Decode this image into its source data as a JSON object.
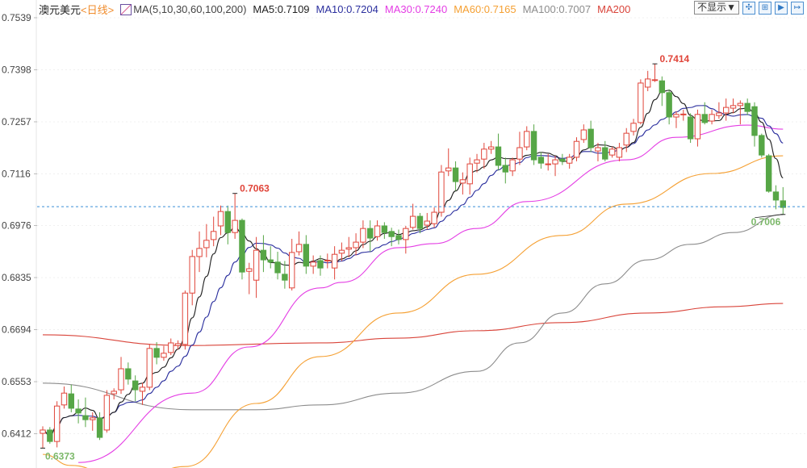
{
  "legend": {
    "instrument": "澳元美元",
    "period": "<日线>",
    "ma_label": "MA(5,10,30,60,100,200)",
    "ma5": "MA5:0.7109",
    "ma10": "MA10:0.7204",
    "ma30": "MA30:0.7240",
    "ma60": "MA60:0.7165",
    "ma100": "MA100:0.7007",
    "ma200": "MA200"
  },
  "controls": {
    "display_select": "不显示▼",
    "icons": [
      "crosshair-icon",
      "zoom-in-icon",
      "play-icon",
      "export-icon"
    ],
    "icon_glyphs": [
      "✣",
      "⊞",
      "▶",
      "↦"
    ]
  },
  "colors": {
    "up": "#e0453a",
    "down": "#56a646",
    "ma5": "#222222",
    "ma10": "#2b2f9e",
    "ma30": "#e43de4",
    "ma60": "#f5a033",
    "ma100": "#8c8c8c",
    "ma200": "#d9443a",
    "last_price_line": "#3a8fd8"
  },
  "chart_data": {
    "type": "candlestick",
    "ylim": [
      0.6335,
      0.7587
    ],
    "yticks": [
      "0.7539",
      "0.7398",
      "0.7257",
      "0.7116",
      "0.6976",
      "0.6835",
      "0.6694",
      "0.6553",
      "0.6412"
    ],
    "grid": true,
    "ohlc": [
      [
        0.6413,
        0.6432,
        0.6373,
        0.6422
      ],
      [
        0.6422,
        0.643,
        0.6385,
        0.6391
      ],
      [
        0.6391,
        0.65,
        0.6375,
        0.6487
      ],
      [
        0.649,
        0.654,
        0.648,
        0.6522
      ],
      [
        0.652,
        0.6545,
        0.647,
        0.6481
      ],
      [
        0.6479,
        0.6505,
        0.644,
        0.6468
      ],
      [
        0.6461,
        0.651,
        0.643,
        0.645
      ],
      [
        0.645,
        0.647,
        0.642,
        0.6455
      ],
      [
        0.6455,
        0.647,
        0.6395,
        0.6402
      ],
      [
        0.6422,
        0.653,
        0.6415,
        0.6516
      ],
      [
        0.652,
        0.6535,
        0.6505,
        0.6527
      ],
      [
        0.6531,
        0.662,
        0.652,
        0.6588
      ],
      [
        0.6588,
        0.6605,
        0.6545,
        0.656
      ],
      [
        0.6555,
        0.657,
        0.65,
        0.6531
      ],
      [
        0.6527,
        0.655,
        0.649,
        0.6538
      ],
      [
        0.6538,
        0.6655,
        0.653,
        0.6643
      ],
      [
        0.6643,
        0.666,
        0.66,
        0.6619
      ],
      [
        0.6619,
        0.665,
        0.661,
        0.663
      ],
      [
        0.6632,
        0.667,
        0.6625,
        0.6658
      ],
      [
        0.6651,
        0.6665,
        0.664,
        0.6656
      ],
      [
        0.6654,
        0.68,
        0.664,
        0.6793
      ],
      [
        0.6793,
        0.691,
        0.676,
        0.6892
      ],
      [
        0.6892,
        0.696,
        0.685,
        0.6914
      ],
      [
        0.6916,
        0.698,
        0.689,
        0.6936
      ],
      [
        0.6938,
        0.7,
        0.692,
        0.696
      ],
      [
        0.6975,
        0.703,
        0.695,
        0.7014
      ],
      [
        0.7014,
        0.703,
        0.6925,
        0.6957
      ],
      [
        0.6957,
        0.7063,
        0.694,
        0.699
      ],
      [
        0.699,
        0.6995,
        0.683,
        0.685
      ],
      [
        0.6852,
        0.6875,
        0.679,
        0.6859
      ],
      [
        0.6828,
        0.6945,
        0.678,
        0.6909
      ],
      [
        0.6909,
        0.695,
        0.685,
        0.6883
      ],
      [
        0.6883,
        0.692,
        0.686,
        0.6877
      ],
      [
        0.6877,
        0.6905,
        0.683,
        0.6848
      ],
      [
        0.6844,
        0.688,
        0.6805,
        0.6828
      ],
      [
        0.6807,
        0.694,
        0.68,
        0.6903
      ],
      [
        0.6905,
        0.696,
        0.6895,
        0.6925
      ],
      [
        0.6925,
        0.695,
        0.6845,
        0.6866
      ],
      [
        0.6866,
        0.6895,
        0.6845,
        0.6877
      ],
      [
        0.6881,
        0.6895,
        0.684,
        0.6861
      ],
      [
        0.6881,
        0.69,
        0.686,
        0.6882
      ],
      [
        0.6861,
        0.692,
        0.683,
        0.6898
      ],
      [
        0.6901,
        0.693,
        0.688,
        0.6909
      ],
      [
        0.6912,
        0.6945,
        0.689,
        0.6916
      ],
      [
        0.6916,
        0.6955,
        0.6895,
        0.6931
      ],
      [
        0.6931,
        0.699,
        0.6915,
        0.6968
      ],
      [
        0.6968,
        0.699,
        0.6905,
        0.6942
      ],
      [
        0.6946,
        0.699,
        0.6935,
        0.6975
      ],
      [
        0.6975,
        0.6985,
        0.694,
        0.6957
      ],
      [
        0.696,
        0.697,
        0.692,
        0.6946
      ],
      [
        0.6949,
        0.6965,
        0.6925,
        0.6938
      ],
      [
        0.6938,
        0.6975,
        0.69,
        0.6968
      ],
      [
        0.6971,
        0.7035,
        0.6965,
        0.7001
      ],
      [
        0.7001,
        0.701,
        0.6955,
        0.6968
      ],
      [
        0.6977,
        0.701,
        0.6965,
        0.6988
      ],
      [
        0.6981,
        0.7025,
        0.697,
        0.7012
      ],
      [
        0.7012,
        0.714,
        0.7,
        0.7121
      ],
      [
        0.7124,
        0.7185,
        0.711,
        0.7132
      ],
      [
        0.7132,
        0.715,
        0.707,
        0.7095
      ],
      [
        0.7091,
        0.712,
        0.706,
        0.71
      ],
      [
        0.7089,
        0.716,
        0.706,
        0.7143
      ],
      [
        0.7145,
        0.717,
        0.712,
        0.7154
      ],
      [
        0.7156,
        0.72,
        0.713,
        0.7183
      ],
      [
        0.7183,
        0.7205,
        0.717,
        0.7189
      ],
      [
        0.7189,
        0.7225,
        0.7125,
        0.7139
      ],
      [
        0.7139,
        0.716,
        0.709,
        0.7121
      ],
      [
        0.7124,
        0.716,
        0.711,
        0.7154
      ],
      [
        0.7156,
        0.723,
        0.714,
        0.7187
      ],
      [
        0.7189,
        0.7245,
        0.718,
        0.7231
      ],
      [
        0.7231,
        0.725,
        0.714,
        0.7154
      ],
      [
        0.7161,
        0.7175,
        0.713,
        0.7145
      ],
      [
        0.7143,
        0.717,
        0.7125,
        0.7143
      ],
      [
        0.7143,
        0.7165,
        0.711,
        0.7154
      ],
      [
        0.7156,
        0.717,
        0.714,
        0.715
      ],
      [
        0.7145,
        0.717,
        0.713,
        0.7161
      ],
      [
        0.7161,
        0.7215,
        0.715,
        0.7204
      ],
      [
        0.7209,
        0.725,
        0.72,
        0.7235
      ],
      [
        0.7237,
        0.726,
        0.7175,
        0.7187
      ],
      [
        0.7178,
        0.72,
        0.715,
        0.7187
      ],
      [
        0.7187,
        0.7205,
        0.715,
        0.7156
      ],
      [
        0.7167,
        0.719,
        0.716,
        0.7183
      ],
      [
        0.7161,
        0.72,
        0.715,
        0.7187
      ],
      [
        0.7194,
        0.724,
        0.7175,
        0.7226
      ],
      [
        0.7231,
        0.7265,
        0.722,
        0.7253
      ],
      [
        0.7255,
        0.7372,
        0.725,
        0.7362
      ],
      [
        0.7351,
        0.7395,
        0.734,
        0.7373
      ],
      [
        0.7371,
        0.7414,
        0.7365,
        0.7371
      ],
      [
        0.7368,
        0.738,
        0.73,
        0.7336
      ],
      [
        0.7336,
        0.7345,
        0.725,
        0.727
      ],
      [
        0.727,
        0.7285,
        0.724,
        0.7277
      ],
      [
        0.7277,
        0.729,
        0.726,
        0.7278
      ],
      [
        0.727,
        0.728,
        0.72,
        0.7211
      ],
      [
        0.7211,
        0.729,
        0.719,
        0.7277
      ],
      [
        0.7277,
        0.731,
        0.725,
        0.7255
      ],
      [
        0.7259,
        0.729,
        0.725,
        0.7277
      ],
      [
        0.7274,
        0.731,
        0.7265,
        0.7281
      ],
      [
        0.7281,
        0.732,
        0.726,
        0.7296
      ],
      [
        0.7294,
        0.732,
        0.728,
        0.7301
      ],
      [
        0.7301,
        0.7315,
        0.725,
        0.7307
      ],
      [
        0.7307,
        0.732,
        0.7275,
        0.7285
      ],
      [
        0.7298,
        0.731,
        0.719,
        0.722
      ],
      [
        0.722,
        0.7225,
        0.716,
        0.7167
      ],
      [
        0.7165,
        0.717,
        0.7065,
        0.7069
      ],
      [
        0.7067,
        0.7085,
        0.702,
        0.7045
      ],
      [
        0.7043,
        0.708,
        0.7006,
        0.7025
      ]
    ],
    "ma_lines": {
      "ma30": [
        [
          5,
          0.6334
        ],
        [
          21,
          0.6522
        ],
        [
          29,
          0.6647
        ],
        [
          39,
          0.6807
        ],
        [
          42,
          0.6822
        ],
        [
          50,
          0.6916
        ],
        [
          55,
          0.6927
        ],
        [
          61,
          0.6968
        ],
        [
          68,
          0.7041
        ],
        [
          82,
          0.7154
        ],
        [
          89,
          0.7215
        ],
        [
          99,
          0.7248
        ],
        [
          104,
          0.7237
        ]
      ],
      "ma60": [
        [
          0,
          0.6356
        ],
        [
          4,
          0.6326
        ],
        [
          12,
          0.627
        ],
        [
          20,
          0.6323
        ],
        [
          30,
          0.6494
        ],
        [
          39,
          0.6621
        ],
        [
          50,
          0.6739
        ],
        [
          61,
          0.6844
        ],
        [
          73,
          0.6949
        ],
        [
          82,
          0.7034
        ],
        [
          94,
          0.7117
        ],
        [
          104,
          0.7165
        ]
      ],
      "ma100": [
        [
          0,
          0.6549
        ],
        [
          21,
          0.6477
        ],
        [
          30,
          0.6477
        ],
        [
          39,
          0.649
        ],
        [
          50,
          0.6522
        ],
        [
          61,
          0.6581
        ],
        [
          67,
          0.6658
        ],
        [
          73,
          0.6739
        ],
        [
          79,
          0.6818
        ],
        [
          85,
          0.6883
        ],
        [
          91,
          0.6925
        ],
        [
          97,
          0.6957
        ],
        [
          104,
          0.7006
        ]
      ],
      "ma200": [
        [
          0,
          0.668
        ],
        [
          20,
          0.6651
        ],
        [
          39,
          0.6658
        ],
        [
          50,
          0.6671
        ],
        [
          61,
          0.6691
        ],
        [
          73,
          0.6713
        ],
        [
          85,
          0.6739
        ],
        [
          96,
          0.6756
        ],
        [
          104,
          0.6765
        ]
      ]
    },
    "last_price_line": 0.7027,
    "annotations": [
      {
        "index": 27,
        "value": 0.7063,
        "label": "0.7063",
        "kind": "high"
      },
      {
        "index": 86,
        "value": 0.7414,
        "label": "0.7414",
        "kind": "high"
      },
      {
        "index": 104,
        "value": 0.7006,
        "label": "0.7006",
        "kind": "low"
      },
      {
        "index": 0,
        "value": 0.6373,
        "label": "0.6373",
        "kind": "low"
      }
    ]
  }
}
